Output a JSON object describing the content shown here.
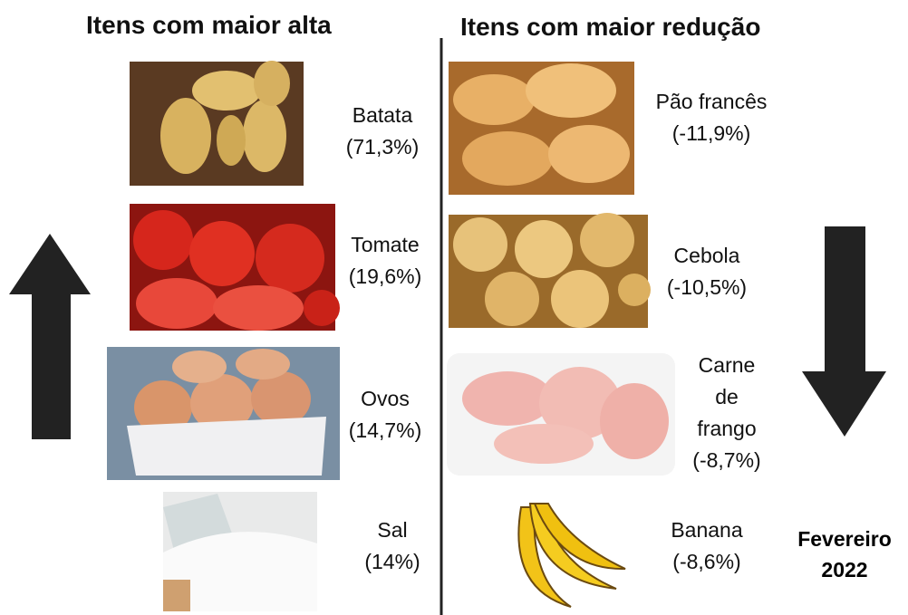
{
  "left": {
    "title": "Itens com maior alta",
    "items": [
      {
        "name_lines": [
          "Batata"
        ],
        "value": "(71,3%)"
      },
      {
        "name_lines": [
          "Tomate"
        ],
        "value": "(19,6%)"
      },
      {
        "name_lines": [
          "Ovos"
        ],
        "value": "(14,7%)"
      },
      {
        "name_lines": [
          "Sal"
        ],
        "value": "(14%)"
      }
    ]
  },
  "right": {
    "title": "Itens com maior redução",
    "items": [
      {
        "name_lines": [
          "Pão francês"
        ],
        "value": "(-11,9%)"
      },
      {
        "name_lines": [
          "Cebola"
        ],
        "value": "(-10,5%)"
      },
      {
        "name_lines": [
          "Carne",
          "de",
          "frango"
        ],
        "value": "(-8,7%)"
      },
      {
        "name_lines": [
          "Banana"
        ],
        "value": "(-8,6%)"
      }
    ]
  },
  "date": [
    "Fevereiro",
    "2022"
  ]
}
